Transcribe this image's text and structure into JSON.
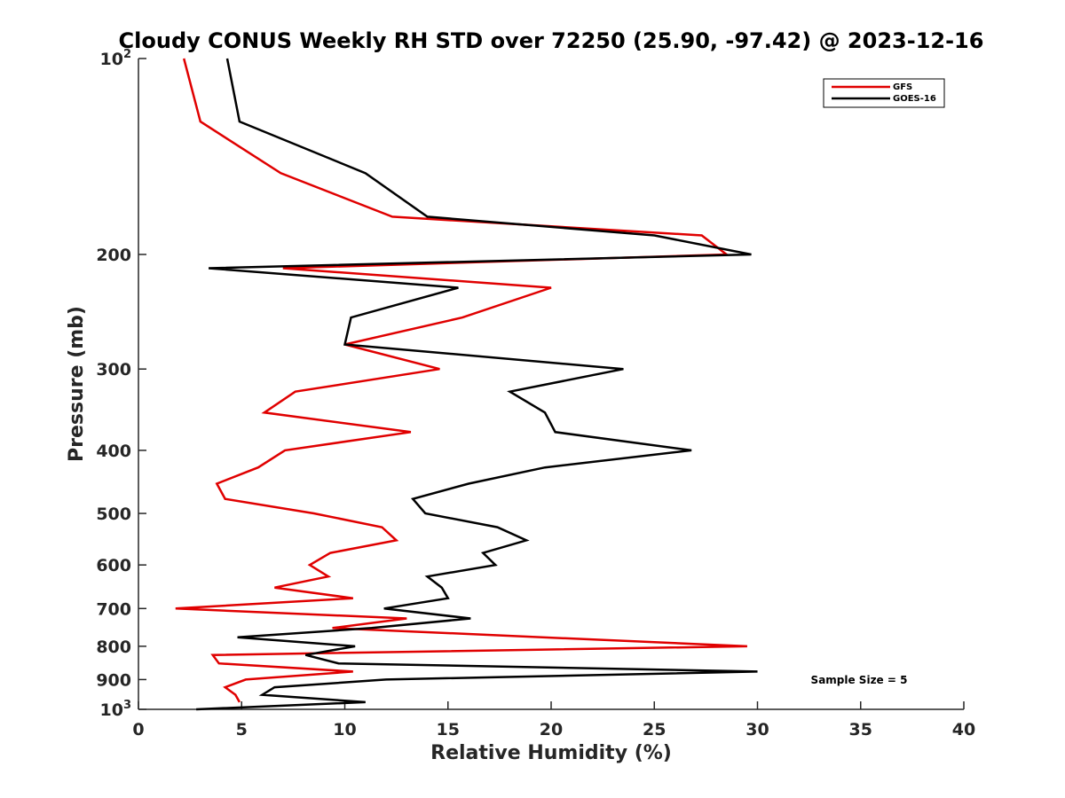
{
  "chart_data": {
    "type": "line",
    "title": "Cloudy CONUS Weekly RH STD over 72250 (25.90, -97.42) @ 2023-12-16",
    "xlabel": "Relative Humidity (%)",
    "ylabel": "Pressure (mb)",
    "xlim": [
      0,
      40
    ],
    "ylim": [
      100,
      1000
    ],
    "y_scale": "log",
    "y_reversed": true,
    "x_ticks": [
      "0",
      "5",
      "10",
      "15",
      "20",
      "25",
      "30",
      "35",
      "40"
    ],
    "y_ticks": [
      {
        "value": 100,
        "base": "10",
        "exp": "2"
      },
      {
        "value": 200,
        "label": "200"
      },
      {
        "value": 300,
        "label": "300"
      },
      {
        "value": 400,
        "label": "400"
      },
      {
        "value": 500,
        "label": "500"
      },
      {
        "value": 600,
        "label": "600"
      },
      {
        "value": 700,
        "label": "700"
      },
      {
        "value": 800,
        "label": "800"
      },
      {
        "value": 900,
        "label": "900"
      },
      {
        "value": 1000,
        "base": "10",
        "exp": "3"
      }
    ],
    "grid": false,
    "legend_position": "top-right",
    "annotation": "Sample Size = 5",
    "series": [
      {
        "name": "GFS",
        "color": "#e00000",
        "points": [
          [
            2.2,
            100
          ],
          [
            3.0,
            125
          ],
          [
            6.9,
            150
          ],
          [
            12.3,
            175
          ],
          [
            27.3,
            187
          ],
          [
            28.5,
            200
          ],
          [
            7.0,
            210
          ],
          [
            20.0,
            225
          ],
          [
            15.7,
            250
          ],
          [
            10.0,
            275
          ],
          [
            14.6,
            300
          ],
          [
            7.6,
            325
          ],
          [
            6.1,
            350
          ],
          [
            13.2,
            375
          ],
          [
            7.1,
            400
          ],
          [
            5.8,
            425
          ],
          [
            3.8,
            450
          ],
          [
            4.2,
            475
          ],
          [
            8.5,
            500
          ],
          [
            11.8,
            525
          ],
          [
            12.5,
            550
          ],
          [
            9.3,
            575
          ],
          [
            8.3,
            600
          ],
          [
            9.2,
            625
          ],
          [
            6.6,
            650
          ],
          [
            10.4,
            675
          ],
          [
            1.8,
            700
          ],
          [
            13.0,
            725
          ],
          [
            9.4,
            750
          ],
          [
            29.5,
            800
          ],
          [
            3.6,
            825
          ],
          [
            3.9,
            850
          ],
          [
            10.4,
            875
          ],
          [
            5.2,
            900
          ],
          [
            4.2,
            925
          ],
          [
            4.7,
            950
          ],
          [
            4.9,
            975
          ]
        ]
      },
      {
        "name": "GOES-16",
        "color": "#000000",
        "points": [
          [
            4.3,
            100
          ],
          [
            4.9,
            125
          ],
          [
            11.0,
            150
          ],
          [
            14.0,
            175
          ],
          [
            25.0,
            187
          ],
          [
            29.7,
            200
          ],
          [
            3.4,
            210
          ],
          [
            15.5,
            225
          ],
          [
            10.3,
            250
          ],
          [
            10.0,
            275
          ],
          [
            23.5,
            300
          ],
          [
            18.0,
            325
          ],
          [
            19.7,
            350
          ],
          [
            20.2,
            375
          ],
          [
            26.8,
            400
          ],
          [
            19.7,
            425
          ],
          [
            16.0,
            450
          ],
          [
            13.3,
            475
          ],
          [
            13.9,
            500
          ],
          [
            17.4,
            525
          ],
          [
            18.8,
            550
          ],
          [
            16.7,
            575
          ],
          [
            17.3,
            600
          ],
          [
            14.0,
            625
          ],
          [
            14.7,
            650
          ],
          [
            15.0,
            675
          ],
          [
            11.9,
            700
          ],
          [
            16.1,
            725
          ],
          [
            11.3,
            750
          ],
          [
            4.8,
            775
          ],
          [
            10.5,
            800
          ],
          [
            8.1,
            825
          ],
          [
            9.7,
            850
          ],
          [
            30.0,
            875
          ],
          [
            12.0,
            900
          ],
          [
            6.6,
            925
          ],
          [
            6.0,
            950
          ],
          [
            11.0,
            975
          ],
          [
            2.8,
            1000
          ]
        ]
      }
    ]
  }
}
